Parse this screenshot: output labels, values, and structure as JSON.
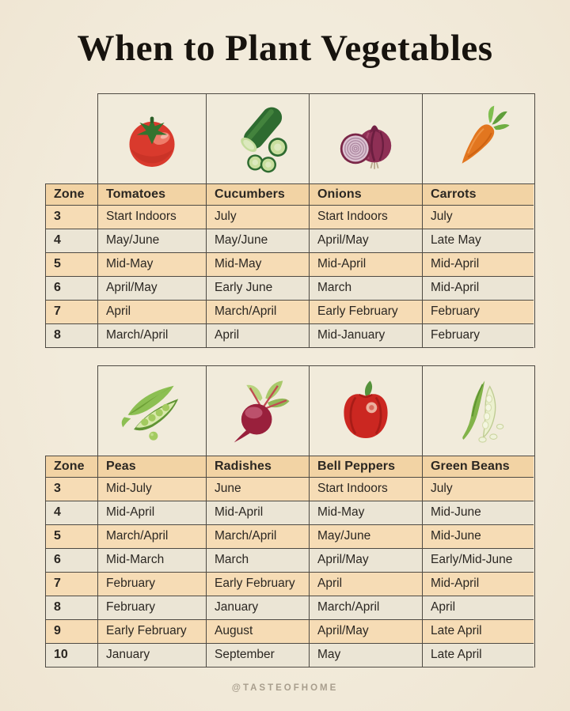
{
  "title": "When to Plant Vegetables",
  "footer": {
    "handle": "@TASTEOFHOME"
  },
  "colors": {
    "background": "#EFE5D2",
    "icon_cell_background": "#F1EBDB",
    "header_row": "#F2D3A4",
    "row_peach": "#F6DCB5",
    "row_light": "#EBE5D5",
    "border": "#4E4A43",
    "text": "#2B2722",
    "title_text": "#17130E",
    "footer_text": "#A89E8D"
  },
  "chart_data": [
    {
      "type": "table",
      "icons": [
        "tomato-icon",
        "cucumber-icon",
        "onion-icon",
        "carrot-icon"
      ],
      "columns": [
        "Zone",
        "Tomatoes",
        "Cucumbers",
        "Onions",
        "Carrots"
      ],
      "rows": [
        [
          "3",
          "Start Indoors",
          "July",
          "Start Indoors",
          "July"
        ],
        [
          "4",
          "May/June",
          "May/June",
          "April/May",
          "Late May"
        ],
        [
          "5",
          "Mid-May",
          "Mid-May",
          "Mid-April",
          "Mid-April"
        ],
        [
          "6",
          "April/May",
          "Early June",
          "March",
          "Mid-April"
        ],
        [
          "7",
          "April",
          "March/April",
          "Early February",
          "February"
        ],
        [
          "8",
          "March/April",
          "April",
          "Mid-January",
          "February"
        ]
      ]
    },
    {
      "type": "table",
      "icons": [
        "peas-icon",
        "radish-icon",
        "bell-pepper-icon",
        "green-beans-icon"
      ],
      "columns": [
        "Zone",
        "Peas",
        "Radishes",
        "Bell Peppers",
        "Green Beans"
      ],
      "rows": [
        [
          "3",
          "Mid-July",
          "June",
          "Start Indoors",
          "July"
        ],
        [
          "4",
          "Mid-April",
          "Mid-April",
          "Mid-May",
          "Mid-June"
        ],
        [
          "5",
          "March/April",
          "March/April",
          "May/June",
          "Mid-June"
        ],
        [
          "6",
          "Mid-March",
          "March",
          "April/May",
          "Early/Mid-June"
        ],
        [
          "7",
          "February",
          "Early February",
          "April",
          "Mid-April"
        ],
        [
          "8",
          "February",
          "January",
          "March/April",
          "April"
        ],
        [
          "9",
          "Early February",
          "August",
          "April/May",
          "Late April"
        ],
        [
          "10",
          "January",
          "September",
          "May",
          "Late April"
        ]
      ]
    }
  ]
}
